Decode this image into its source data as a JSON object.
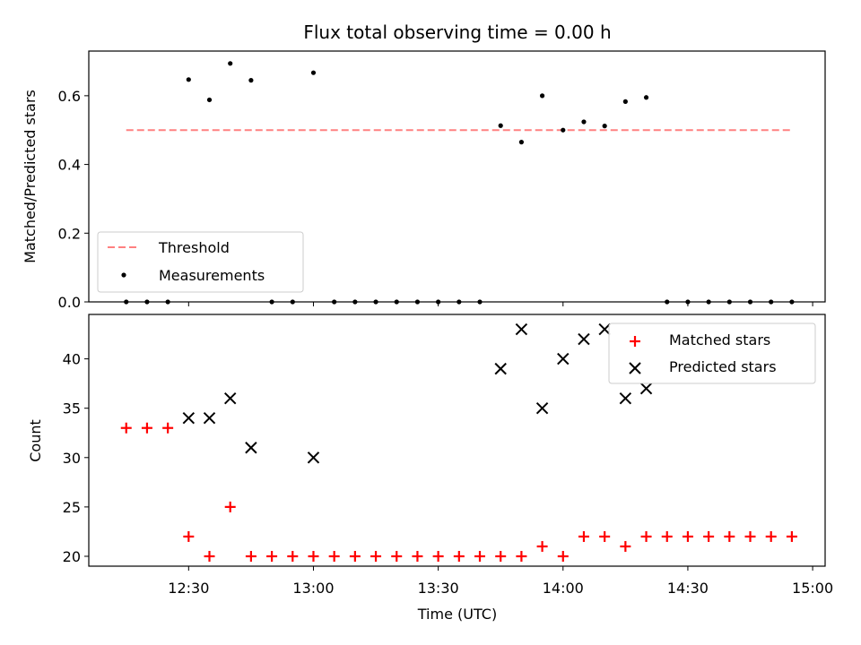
{
  "figure_title": "Flux total observing time = 0.00 h",
  "chart_data": [
    {
      "type": "scatter",
      "panel": "top",
      "ylabel": "Matched/Predicted stars",
      "xlim": [
        "12:06",
        "15:03"
      ],
      "ylim": [
        0,
        0.73
      ],
      "yticks": [
        "0.0",
        "0.2",
        "0.4",
        "0.6"
      ],
      "threshold": {
        "name": "Threshold",
        "value": 0.5,
        "color": "#ff8080",
        "x_range": [
          "12:15",
          "14:55"
        ]
      },
      "series": [
        {
          "name": "Measurements",
          "color": "#000000",
          "points": [
            {
              "x": "12:15",
              "y": 0.0
            },
            {
              "x": "12:20",
              "y": 0.0
            },
            {
              "x": "12:25",
              "y": 0.0
            },
            {
              "x": "12:30",
              "y": 0.647
            },
            {
              "x": "12:35",
              "y": 0.588
            },
            {
              "x": "12:40",
              "y": 0.694
            },
            {
              "x": "12:45",
              "y": 0.645
            },
            {
              "x": "12:50",
              "y": 0.0
            },
            {
              "x": "12:55",
              "y": 0.0
            },
            {
              "x": "13:00",
              "y": 0.667
            },
            {
              "x": "13:05",
              "y": 0.0
            },
            {
              "x": "13:10",
              "y": 0.0
            },
            {
              "x": "13:15",
              "y": 0.0
            },
            {
              "x": "13:20",
              "y": 0.0
            },
            {
              "x": "13:25",
              "y": 0.0
            },
            {
              "x": "13:30",
              "y": 0.0
            },
            {
              "x": "13:35",
              "y": 0.0
            },
            {
              "x": "13:40",
              "y": 0.0
            },
            {
              "x": "13:45",
              "y": 0.513
            },
            {
              "x": "13:50",
              "y": 0.465
            },
            {
              "x": "13:55",
              "y": 0.6
            },
            {
              "x": "14:00",
              "y": 0.5
            },
            {
              "x": "14:05",
              "y": 0.524
            },
            {
              "x": "14:10",
              "y": 0.512
            },
            {
              "x": "14:15",
              "y": 0.583
            },
            {
              "x": "14:20",
              "y": 0.595
            },
            {
              "x": "14:25",
              "y": 0.0
            },
            {
              "x": "14:30",
              "y": 0.0
            },
            {
              "x": "14:35",
              "y": 0.0
            },
            {
              "x": "14:40",
              "y": 0.0
            },
            {
              "x": "14:45",
              "y": 0.0
            },
            {
              "x": "14:50",
              "y": 0.0
            },
            {
              "x": "14:55",
              "y": 0.0
            }
          ]
        }
      ],
      "legend": {
        "position": "lower-left",
        "entries": [
          "Threshold",
          "Measurements"
        ]
      }
    },
    {
      "type": "scatter",
      "panel": "bottom",
      "xlabel": "Time (UTC)",
      "ylabel": "Count",
      "xlim": [
        "12:06",
        "15:03"
      ],
      "ylim": [
        19,
        44.5
      ],
      "yticks": [
        "20",
        "25",
        "30",
        "35",
        "40"
      ],
      "xticks": [
        "12:30",
        "13:00",
        "13:30",
        "14:00",
        "14:30",
        "15:00"
      ],
      "series": [
        {
          "name": "Matched stars",
          "marker": "plus",
          "color": "#ff0000",
          "points": [
            {
              "x": "12:15",
              "y": 33
            },
            {
              "x": "12:20",
              "y": 33
            },
            {
              "x": "12:25",
              "y": 33
            },
            {
              "x": "12:30",
              "y": 22
            },
            {
              "x": "12:35",
              "y": 20
            },
            {
              "x": "12:40",
              "y": 25
            },
            {
              "x": "12:45",
              "y": 20
            },
            {
              "x": "12:50",
              "y": 20
            },
            {
              "x": "12:55",
              "y": 20
            },
            {
              "x": "13:00",
              "y": 20
            },
            {
              "x": "13:05",
              "y": 20
            },
            {
              "x": "13:10",
              "y": 20
            },
            {
              "x": "13:15",
              "y": 20
            },
            {
              "x": "13:20",
              "y": 20
            },
            {
              "x": "13:25",
              "y": 20
            },
            {
              "x": "13:30",
              "y": 20
            },
            {
              "x": "13:35",
              "y": 20
            },
            {
              "x": "13:40",
              "y": 20
            },
            {
              "x": "13:45",
              "y": 20
            },
            {
              "x": "13:50",
              "y": 20
            },
            {
              "x": "13:55",
              "y": 21
            },
            {
              "x": "14:00",
              "y": 20
            },
            {
              "x": "14:05",
              "y": 22
            },
            {
              "x": "14:10",
              "y": 22
            },
            {
              "x": "14:15",
              "y": 21
            },
            {
              "x": "14:20",
              "y": 22
            },
            {
              "x": "14:25",
              "y": 22
            },
            {
              "x": "14:30",
              "y": 22
            },
            {
              "x": "14:35",
              "y": 22
            },
            {
              "x": "14:40",
              "y": 22
            },
            {
              "x": "14:45",
              "y": 22
            },
            {
              "x": "14:50",
              "y": 22
            },
            {
              "x": "14:55",
              "y": 22
            }
          ]
        },
        {
          "name": "Predicted stars",
          "marker": "x",
          "color": "#000000",
          "points": [
            {
              "x": "12:30",
              "y": 34
            },
            {
              "x": "12:35",
              "y": 34
            },
            {
              "x": "12:40",
              "y": 36
            },
            {
              "x": "12:45",
              "y": 31
            },
            {
              "x": "13:00",
              "y": 30
            },
            {
              "x": "13:45",
              "y": 39
            },
            {
              "x": "13:50",
              "y": 43
            },
            {
              "x": "13:55",
              "y": 35
            },
            {
              "x": "14:00",
              "y": 40
            },
            {
              "x": "14:05",
              "y": 42
            },
            {
              "x": "14:10",
              "y": 43
            },
            {
              "x": "14:15",
              "y": 36
            },
            {
              "x": "14:20",
              "y": 37
            }
          ]
        }
      ],
      "legend": {
        "position": "upper-right",
        "entries": [
          "Matched stars",
          "Predicted stars"
        ]
      }
    }
  ]
}
